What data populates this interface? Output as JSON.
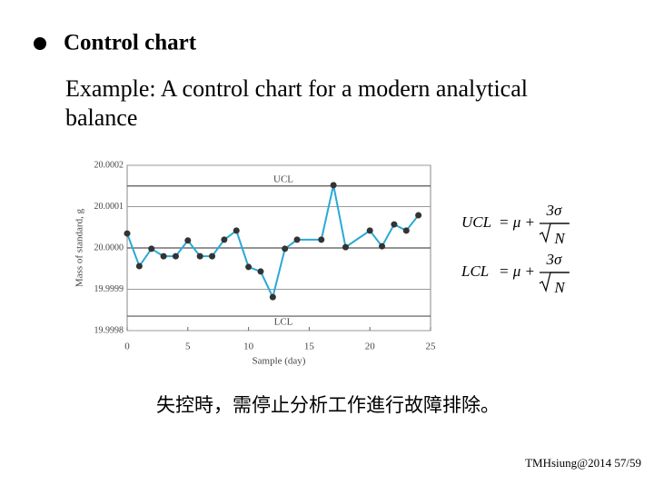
{
  "heading": "Control chart",
  "example": [
    "Example: A control chart for a modern analytical",
    "balance"
  ],
  "formulas": [
    {
      "lhs": "UCL",
      "op": "= μ +",
      "num": "3σ",
      "den": "N"
    },
    {
      "lhs": "LCL",
      "op": "= μ +",
      "num": "3σ",
      "den": "N"
    }
  ],
  "note": "失控時，需停止分析工作進行故障排除。",
  "footer": "TMHsiung@2014 57/59",
  "chart_data": {
    "type": "line",
    "x_label": "Sample (day)",
    "y_label": "Mass of standard, g",
    "x": [
      0,
      1,
      2,
      3,
      4,
      5,
      6,
      7,
      8,
      9,
      10,
      11,
      12,
      13,
      14,
      16,
      17,
      18,
      20,
      21,
      22,
      23,
      24
    ],
    "series": [
      {
        "name": "Mass",
        "color": "#29a9d6",
        "marker_color": "#333333",
        "values": [
          20.000035,
          19.999956,
          19.999998,
          19.99998,
          19.99998,
          20.000018,
          19.99998,
          19.99998,
          20.00002,
          20.000042,
          19.999954,
          19.999943,
          19.999881,
          19.999998,
          20.00002,
          20.00002,
          20.000152,
          20.000002,
          20.000042,
          20.000004,
          20.000057,
          20.000042,
          20.000079
        ]
      }
    ],
    "limits": [
      {
        "label": "UCL",
        "value": 20.00015
      },
      {
        "label": "LCL",
        "value": 19.999835
      }
    ],
    "center": 20.0,
    "xlim": [
      0,
      25
    ],
    "xticks": [
      0,
      5,
      10,
      15,
      20,
      25
    ],
    "ylim": [
      19.9998,
      20.0002
    ],
    "yticks": [
      19.9998,
      19.9999,
      {
        "value": 20.0,
        "label": "20.0000"
      },
      20.0001,
      20.0002
    ]
  }
}
